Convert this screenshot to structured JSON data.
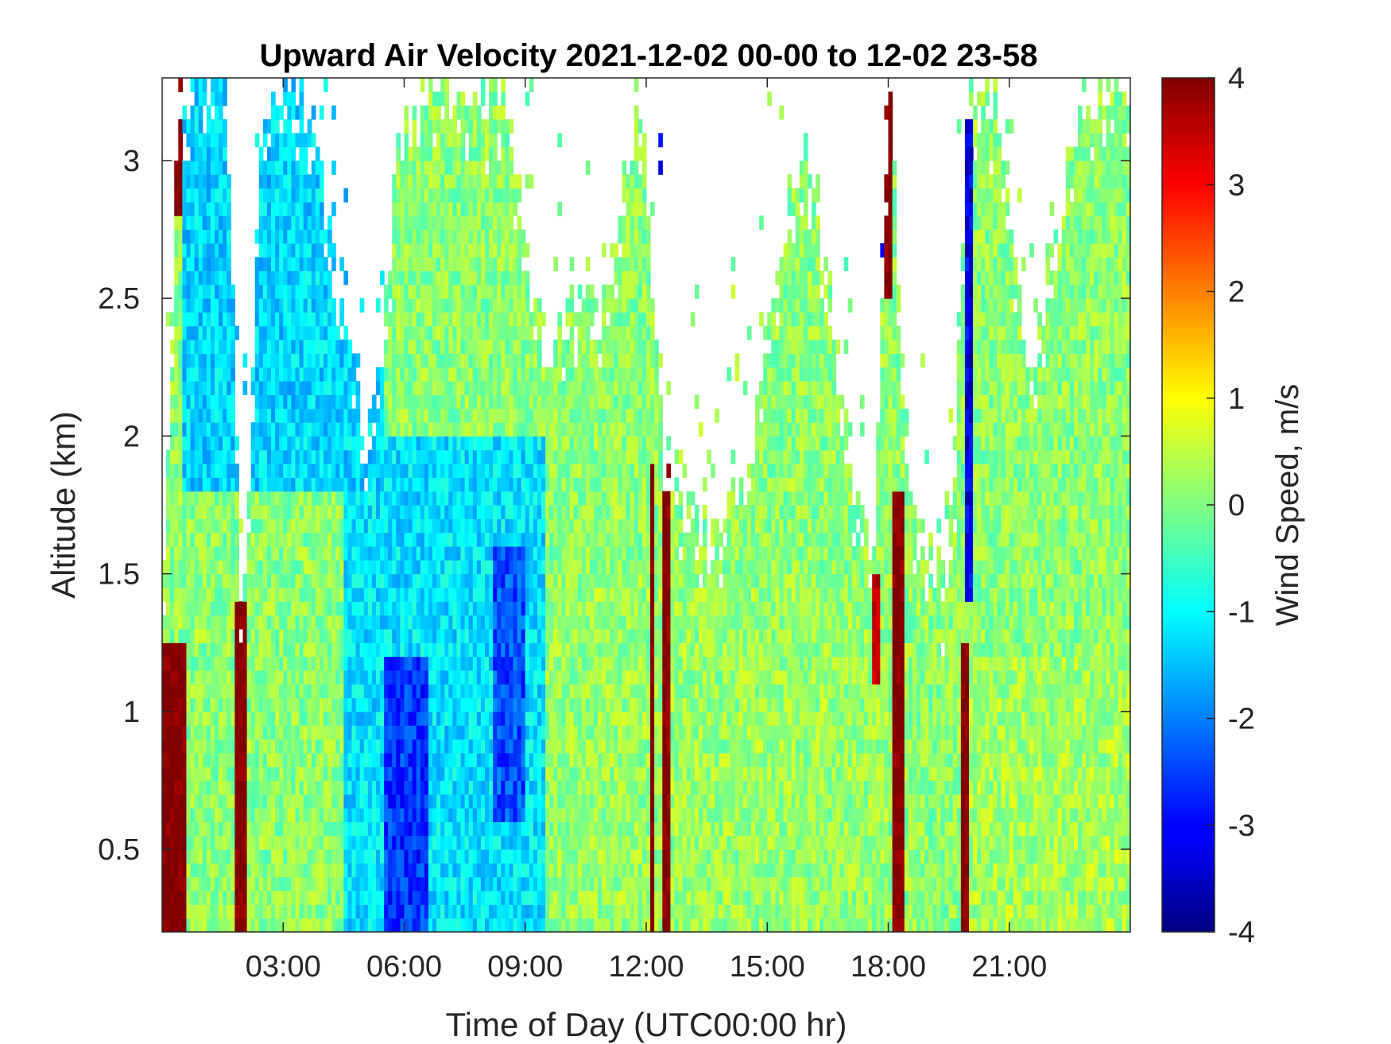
{
  "chart_data": {
    "type": "heatmap",
    "title": "Upward Air Velocity 2021-12-02 00-00 to 12-02 23-58",
    "xlabel": "Time of Day (UTC00:00 hr)",
    "ylabel": "Altitude (km)",
    "colorbar_label": "Wind Speed, m/s",
    "colormap": "jet",
    "xlim": [
      0,
      24
    ],
    "ylim": [
      0.2,
      3.3
    ],
    "clim": [
      -4,
      4
    ],
    "x_ticks": [
      {
        "value": 3,
        "label": "03:00"
      },
      {
        "value": 6,
        "label": "06:00"
      },
      {
        "value": 9,
        "label": "09:00"
      },
      {
        "value": 12,
        "label": "12:00"
      },
      {
        "value": 15,
        "label": "15:00"
      },
      {
        "value": 18,
        "label": "18:00"
      },
      {
        "value": 21,
        "label": "21:00"
      }
    ],
    "y_ticks": [
      {
        "value": 0.5,
        "label": "0.5"
      },
      {
        "value": 1,
        "label": "1"
      },
      {
        "value": 1.5,
        "label": "1.5"
      },
      {
        "value": 2,
        "label": "2"
      },
      {
        "value": 2.5,
        "label": "2.5"
      },
      {
        "value": 3,
        "label": "3"
      }
    ],
    "colorbar_ticks": [
      {
        "value": 4,
        "label": "4"
      },
      {
        "value": 3,
        "label": "3"
      },
      {
        "value": 2,
        "label": "2"
      },
      {
        "value": 1,
        "label": "1"
      },
      {
        "value": 0,
        "label": "0"
      },
      {
        "value": -1,
        "label": "-1"
      },
      {
        "value": -2,
        "label": "-2"
      },
      {
        "value": -3,
        "label": "-3"
      },
      {
        "value": -4,
        "label": "-4"
      }
    ],
    "time_resolution_hr": 0.1,
    "altitude_resolution_km": 0.05,
    "data_top_profile_km": [
      [
        0.0,
        1.25
      ],
      [
        0.4,
        3.3
      ],
      [
        1.0,
        3.3
      ],
      [
        1.6,
        3.3
      ],
      [
        2.0,
        1.3
      ],
      [
        2.5,
        3.3
      ],
      [
        3.5,
        3.3
      ],
      [
        4.5,
        2.4
      ],
      [
        5.2,
        1.9
      ],
      [
        5.8,
        3.0
      ],
      [
        6.5,
        3.3
      ],
      [
        7.5,
        3.3
      ],
      [
        8.5,
        3.3
      ],
      [
        9.5,
        2.3
      ],
      [
        10.3,
        2.6
      ],
      [
        11.0,
        2.5
      ],
      [
        11.8,
        3.3
      ],
      [
        12.5,
        1.9
      ],
      [
        13.5,
        1.7
      ],
      [
        14.5,
        1.9
      ],
      [
        15.2,
        2.6
      ],
      [
        16.0,
        3.1
      ],
      [
        17.0,
        2.0
      ],
      [
        17.6,
        1.5
      ],
      [
        18.0,
        3.3
      ],
      [
        18.7,
        1.6
      ],
      [
        19.5,
        1.45
      ],
      [
        20.0,
        3.3
      ],
      [
        20.5,
        3.3
      ],
      [
        21.5,
        2.2
      ],
      [
        22.5,
        3.0
      ],
      [
        23.3,
        3.3
      ],
      [
        24.0,
        3.3
      ]
    ],
    "velocity_features": [
      {
        "name": "strong updraft",
        "t_start": 0.0,
        "t_end": 0.6,
        "alt_min_km": 0.2,
        "alt_max_km": 1.25,
        "w_ms": 4.0
      },
      {
        "name": "strong updraft",
        "t_start": 0.35,
        "t_end": 0.55,
        "alt_min_km": 2.8,
        "alt_max_km": 3.3,
        "w_ms": 4.0
      },
      {
        "name": "strong updraft",
        "t_start": 1.85,
        "t_end": 2.1,
        "alt_min_km": 0.2,
        "alt_max_km": 1.4,
        "w_ms": 4.0
      },
      {
        "name": "strong updraft",
        "t_start": 12.05,
        "t_end": 12.2,
        "alt_min_km": 0.2,
        "alt_max_km": 1.9,
        "w_ms": 4.0
      },
      {
        "name": "strong updraft",
        "t_start": 12.42,
        "t_end": 12.55,
        "alt_min_km": 0.2,
        "alt_max_km": 1.9,
        "w_ms": 4.0
      },
      {
        "name": "strong updraft",
        "t_start": 17.55,
        "t_end": 17.8,
        "alt_min_km": 1.1,
        "alt_max_km": 1.5,
        "w_ms": 3.5
      },
      {
        "name": "strong updraft",
        "t_start": 18.05,
        "t_end": 18.35,
        "alt_min_km": 0.2,
        "alt_max_km": 1.8,
        "w_ms": 4.0
      },
      {
        "name": "strong updraft",
        "t_start": 17.9,
        "t_end": 18.05,
        "alt_min_km": 2.5,
        "alt_max_km": 3.3,
        "w_ms": 4.0
      },
      {
        "name": "strong updraft",
        "t_start": 19.85,
        "t_end": 20.0,
        "alt_min_km": 0.2,
        "alt_max_km": 1.25,
        "w_ms": 4.0
      },
      {
        "name": "downdraft",
        "t_start": 5.5,
        "t_end": 6.6,
        "alt_min_km": 0.2,
        "alt_max_km": 1.2,
        "w_ms": -2.6
      },
      {
        "name": "downdraft",
        "t_start": 8.2,
        "t_end": 9.0,
        "alt_min_km": 0.6,
        "alt_max_km": 1.6,
        "w_ms": -2.4
      },
      {
        "name": "downdraft",
        "t_start": 12.15,
        "t_end": 12.35,
        "alt_min_km": 2.6,
        "alt_max_km": 3.3,
        "w_ms": -3.0
      },
      {
        "name": "downdraft",
        "t_start": 19.9,
        "t_end": 20.1,
        "alt_min_km": 1.4,
        "alt_max_km": 3.2,
        "w_ms": -3.2
      },
      {
        "name": "downdraft",
        "t_start": 17.8,
        "t_end": 17.95,
        "alt_min_km": 2.6,
        "alt_max_km": 3.3,
        "w_ms": -2.8
      },
      {
        "name": "weak downdraft",
        "t_start": 0.5,
        "t_end": 5.5,
        "alt_min_km": 1.8,
        "alt_max_km": 3.3,
        "w_ms": -1.3
      },
      {
        "name": "weak downdraft",
        "t_start": 4.5,
        "t_end": 9.5,
        "alt_min_km": 0.2,
        "alt_max_km": 2.0,
        "w_ms": -1.2
      },
      {
        "name": "light upward",
        "t_start": 9.5,
        "t_end": 18.0,
        "alt_min_km": 0.2,
        "alt_max_km": 1.5,
        "w_ms": 0.2
      },
      {
        "name": "light upward",
        "t_start": 20.0,
        "t_end": 24.0,
        "alt_min_km": 0.2,
        "alt_max_km": 1.2,
        "w_ms": 0.3
      }
    ]
  }
}
